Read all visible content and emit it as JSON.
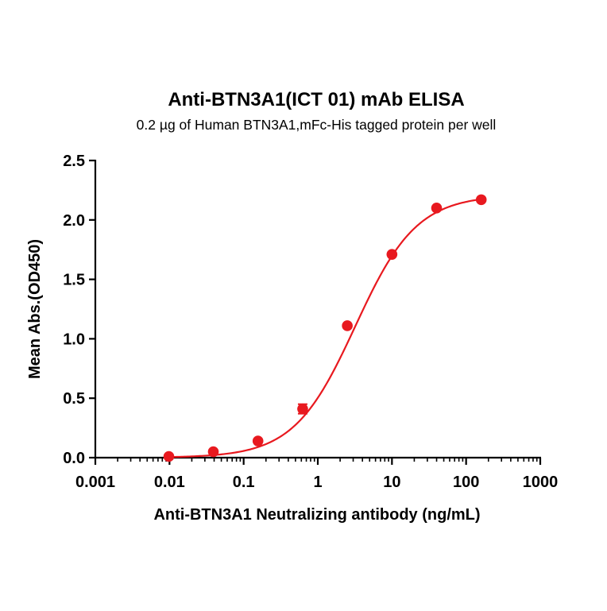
{
  "chart_data": {
    "type": "scatter",
    "title": "Anti-BTN3A1(ICT 01) mAb ELISA",
    "subtitle": "0.2 µg of Human BTN3A1,mFc-His tagged protein per well",
    "xlabel": "Anti-BTN3A1 Neutralizing antibody (ng/mL)",
    "ylabel": "Mean Abs.(OD450)",
    "x_scale": "log",
    "xlim": [
      0.001,
      1000
    ],
    "ylim": [
      0,
      2.5
    ],
    "x_ticks": [
      0.001,
      0.01,
      0.1,
      1,
      10,
      100,
      1000
    ],
    "x_tick_labels": [
      "0.001",
      "0.01",
      "0.1",
      "1",
      "10",
      "100",
      "1000"
    ],
    "y_ticks": [
      0,
      0.5,
      1.0,
      1.5,
      2.0,
      2.5
    ],
    "y_tick_labels": [
      "0.0",
      "0.5",
      "1.0",
      "1.5",
      "2.0",
      "2.5"
    ],
    "grid": false,
    "color": "#e8191f",
    "points": [
      {
        "x": 0.0098,
        "y": 0.01,
        "err": 0.005
      },
      {
        "x": 0.039,
        "y": 0.05,
        "err": 0.005
      },
      {
        "x": 0.156,
        "y": 0.14,
        "err": 0.01
      },
      {
        "x": 0.625,
        "y": 0.41,
        "err": 0.04
      },
      {
        "x": 2.5,
        "y": 1.11,
        "err": 0.01
      },
      {
        "x": 10,
        "y": 1.71,
        "err": 0.01
      },
      {
        "x": 40,
        "y": 2.1,
        "err": 0.01
      },
      {
        "x": 160,
        "y": 2.17,
        "err": 0.01
      }
    ],
    "fit": {
      "model": "4PL",
      "bottom": 0.0,
      "top": 2.21,
      "ec50": 3.2,
      "hill": 1.05
    }
  }
}
